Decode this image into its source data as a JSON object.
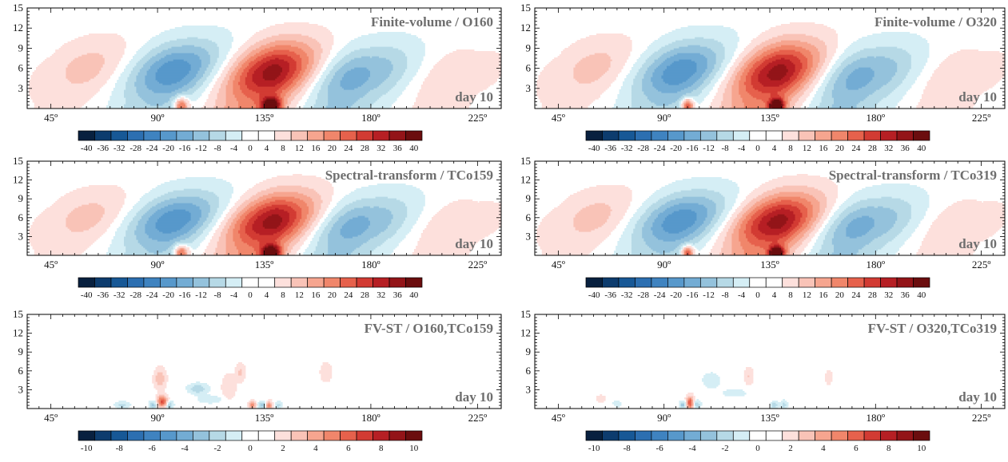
{
  "chart_data": [
    {
      "type": "heatmap",
      "title": "Finite-volume / O160",
      "annotation": "day 10",
      "xlim": [
        35,
        235
      ],
      "ylim": [
        0,
        15
      ],
      "x_ticks": [
        "45º",
        "90º",
        "135º",
        "180º",
        "225º"
      ],
      "y_ticks": [
        "3",
        "6",
        "9",
        "12",
        "15"
      ],
      "colorbar": {
        "min": -42,
        "max": 42,
        "levels": [
          "-40",
          "-36",
          "-32",
          "-28",
          "-24",
          "-20",
          "-16",
          "-12",
          "-8",
          "-4",
          "0",
          "4",
          "8",
          "12",
          "16",
          "20",
          "24",
          "28",
          "32",
          "36",
          "40"
        ]
      },
      "wave": {
        "k": 0.0733,
        "phase": 3.2,
        "tilt": 0.6,
        "decay": 40,
        "envelope": [
          [
            45,
            0.12
          ],
          [
            70,
            0.38
          ],
          [
            95,
            0.65
          ],
          [
            115,
            0.72
          ],
          [
            130,
            0.9
          ],
          [
            140,
            1.0
          ],
          [
            160,
            0.78
          ],
          [
            180,
            0.42
          ],
          [
            205,
            0.28
          ],
          [
            225,
            0.1
          ]
        ],
        "peak": 42
      },
      "features": [
        {
          "x": 100,
          "y": 0.5,
          "value": 24,
          "sx": 3,
          "sy": 1.2
        },
        {
          "x": 138,
          "y": 0.5,
          "value": 34,
          "sx": 4,
          "sy": 1.2
        }
      ]
    },
    {
      "type": "heatmap",
      "title": "Finite-volume / O320",
      "annotation": "day 10",
      "xlim": [
        35,
        235
      ],
      "ylim": [
        0,
        15
      ],
      "x_ticks": [
        "45º",
        "90º",
        "135º",
        "180º",
        "225º"
      ],
      "y_ticks": [
        "3",
        "6",
        "9",
        "12",
        "15"
      ],
      "colorbar": {
        "min": -42,
        "max": 42,
        "levels": [
          "-40",
          "-36",
          "-32",
          "-28",
          "-24",
          "-20",
          "-16",
          "-12",
          "-8",
          "-4",
          "0",
          "4",
          "8",
          "12",
          "16",
          "20",
          "24",
          "28",
          "32",
          "36",
          "40"
        ]
      },
      "wave": {
        "k": 0.0733,
        "phase": 3.2,
        "tilt": 0.6,
        "decay": 40,
        "envelope": [
          [
            45,
            0.12
          ],
          [
            70,
            0.38
          ],
          [
            95,
            0.65
          ],
          [
            115,
            0.72
          ],
          [
            130,
            0.9
          ],
          [
            140,
            1.0
          ],
          [
            160,
            0.78
          ],
          [
            180,
            0.42
          ],
          [
            205,
            0.28
          ],
          [
            225,
            0.1
          ]
        ],
        "peak": 42
      },
      "features": [
        {
          "x": 100,
          "y": 0.5,
          "value": 28,
          "sx": 2.5,
          "sy": 1
        },
        {
          "x": 138,
          "y": 0.5,
          "value": 38,
          "sx": 3,
          "sy": 1
        }
      ]
    },
    {
      "type": "heatmap",
      "title": "Spectral-transform / TCo159",
      "annotation": "day 10",
      "xlim": [
        35,
        235
      ],
      "ylim": [
        0,
        15
      ],
      "x_ticks": [
        "45º",
        "90º",
        "135º",
        "180º",
        "225º"
      ],
      "y_ticks": [
        "3",
        "6",
        "9",
        "12",
        "15"
      ],
      "colorbar": {
        "min": -42,
        "max": 42,
        "levels": [
          "-40",
          "-36",
          "-32",
          "-28",
          "-24",
          "-20",
          "-16",
          "-12",
          "-8",
          "-4",
          "0",
          "4",
          "8",
          "12",
          "16",
          "20",
          "24",
          "28",
          "32",
          "36",
          "40"
        ]
      },
      "wave": {
        "k": 0.0733,
        "phase": 3.2,
        "tilt": 0.6,
        "decay": 40,
        "envelope": [
          [
            45,
            0.12
          ],
          [
            70,
            0.38
          ],
          [
            95,
            0.65
          ],
          [
            115,
            0.72
          ],
          [
            130,
            0.9
          ],
          [
            140,
            1.0
          ],
          [
            160,
            0.78
          ],
          [
            180,
            0.42
          ],
          [
            205,
            0.28
          ],
          [
            225,
            0.1
          ]
        ],
        "peak": 42
      },
      "features": [
        {
          "x": 100,
          "y": 0.5,
          "value": 24,
          "sx": 3,
          "sy": 1.2
        },
        {
          "x": 138,
          "y": 0.5,
          "value": 34,
          "sx": 4,
          "sy": 1.2
        }
      ]
    },
    {
      "type": "heatmap",
      "title": "Spectral-transform / TCo319",
      "annotation": "day 10",
      "xlim": [
        35,
        235
      ],
      "ylim": [
        0,
        15
      ],
      "x_ticks": [
        "45º",
        "90º",
        "135º",
        "180º",
        "225º"
      ],
      "y_ticks": [
        "3",
        "6",
        "9",
        "12",
        "15"
      ],
      "colorbar": {
        "min": -42,
        "max": 42,
        "levels": [
          "-40",
          "-36",
          "-32",
          "-28",
          "-24",
          "-20",
          "-16",
          "-12",
          "-8",
          "-4",
          "0",
          "4",
          "8",
          "12",
          "16",
          "20",
          "24",
          "28",
          "32",
          "36",
          "40"
        ]
      },
      "wave": {
        "k": 0.0733,
        "phase": 3.2,
        "tilt": 0.6,
        "decay": 40,
        "envelope": [
          [
            45,
            0.12
          ],
          [
            70,
            0.38
          ],
          [
            95,
            0.65
          ],
          [
            115,
            0.72
          ],
          [
            130,
            0.9
          ],
          [
            140,
            1.0
          ],
          [
            160,
            0.78
          ],
          [
            180,
            0.42
          ],
          [
            205,
            0.28
          ],
          [
            225,
            0.1
          ]
        ],
        "peak": 42
      },
      "features": [
        {
          "x": 100,
          "y": 0.5,
          "value": 28,
          "sx": 2.5,
          "sy": 1
        },
        {
          "x": 138,
          "y": 0.5,
          "value": 38,
          "sx": 3,
          "sy": 1
        }
      ]
    },
    {
      "type": "heatmap",
      "title": "FV-ST / O160,TCo159",
      "annotation": "day 10",
      "xlim": [
        35,
        235
      ],
      "ylim": [
        0,
        15
      ],
      "x_ticks": [
        "45º",
        "90º",
        "135º",
        "180º",
        "225º"
      ],
      "y_ticks": [
        "3",
        "6",
        "9",
        "12",
        "15"
      ],
      "colorbar": {
        "min": -11,
        "max": 11,
        "levels": [
          "-10",
          "",
          "-8",
          "",
          "-6",
          "",
          "-4",
          "",
          "-2",
          "",
          "0",
          "",
          "2",
          "",
          "4",
          "",
          "6",
          "",
          "8",
          "",
          "10"
        ]
      },
      "features": [
        {
          "x": 91,
          "y": 4.8,
          "value": 2.5,
          "sx": 2.5,
          "sy": 1.6
        },
        {
          "x": 92,
          "y": 1.2,
          "value": 6,
          "sx": 2,
          "sy": 0.9
        },
        {
          "x": 88,
          "y": 0.6,
          "value": -3,
          "sx": 1.5,
          "sy": 0.6
        },
        {
          "x": 95,
          "y": 0.6,
          "value": -3,
          "sx": 1.5,
          "sy": 0.6
        },
        {
          "x": 75,
          "y": 0.6,
          "value": -2,
          "sx": 3,
          "sy": 0.5
        },
        {
          "x": 107,
          "y": 3.2,
          "value": -2.5,
          "sx": 4,
          "sy": 0.8
        },
        {
          "x": 112,
          "y": 1.5,
          "value": -1.5,
          "sx": 5,
          "sy": 0.6
        },
        {
          "x": 120,
          "y": 3.5,
          "value": 1.5,
          "sx": 3,
          "sy": 2
        },
        {
          "x": 125,
          "y": 5.8,
          "value": 1.8,
          "sx": 2,
          "sy": 1.4
        },
        {
          "x": 130,
          "y": 0.6,
          "value": 4,
          "sx": 1.5,
          "sy": 0.6
        },
        {
          "x": 134,
          "y": 0.6,
          "value": -3,
          "sx": 1.5,
          "sy": 0.6
        },
        {
          "x": 137,
          "y": 0.6,
          "value": 4.5,
          "sx": 1.3,
          "sy": 0.6
        },
        {
          "x": 141,
          "y": 0.6,
          "value": -2,
          "sx": 1.5,
          "sy": 0.5
        },
        {
          "x": 161,
          "y": 5.8,
          "value": 1.4,
          "sx": 2.5,
          "sy": 1.6
        }
      ]
    },
    {
      "type": "heatmap",
      "title": "FV-ST / O320,TCo319",
      "annotation": "day 10",
      "xlim": [
        35,
        235
      ],
      "ylim": [
        0,
        15
      ],
      "x_ticks": [
        "45º",
        "90º",
        "135º",
        "180º",
        "225º"
      ],
      "y_ticks": [
        "3",
        "6",
        "9",
        "12",
        "15"
      ],
      "colorbar": {
        "min": -11,
        "max": 11,
        "levels": [
          "-10",
          "",
          "-8",
          "",
          "-6",
          "",
          "-4",
          "",
          "-2",
          "",
          "0",
          "",
          "2",
          "",
          "4",
          "",
          "6",
          "",
          "8",
          "",
          "10"
        ]
      },
      "features": [
        {
          "x": 63,
          "y": 1.6,
          "value": 1.3,
          "sx": 2,
          "sy": 0.6
        },
        {
          "x": 70,
          "y": 0.8,
          "value": -1.2,
          "sx": 2,
          "sy": 0.5
        },
        {
          "x": 101,
          "y": 1.0,
          "value": 6,
          "sx": 1.5,
          "sy": 1.0
        },
        {
          "x": 98,
          "y": 0.6,
          "value": -3,
          "sx": 1.5,
          "sy": 0.6
        },
        {
          "x": 104,
          "y": 0.7,
          "value": -2.5,
          "sx": 1.5,
          "sy": 0.6
        },
        {
          "x": 110,
          "y": 4.5,
          "value": -1.5,
          "sx": 3.5,
          "sy": 1.2
        },
        {
          "x": 120,
          "y": 2.5,
          "value": -1.3,
          "sx": 5,
          "sy": 0.6
        },
        {
          "x": 126,
          "y": 5.2,
          "value": 1.6,
          "sx": 2,
          "sy": 1.4
        },
        {
          "x": 137,
          "y": 0.6,
          "value": -2.5,
          "sx": 1.5,
          "sy": 0.6
        },
        {
          "x": 141,
          "y": 0.7,
          "value": -2.2,
          "sx": 1.3,
          "sy": 0.6
        },
        {
          "x": 160,
          "y": 5.0,
          "value": 1.3,
          "sx": 1.5,
          "sy": 1.2
        }
      ]
    }
  ]
}
